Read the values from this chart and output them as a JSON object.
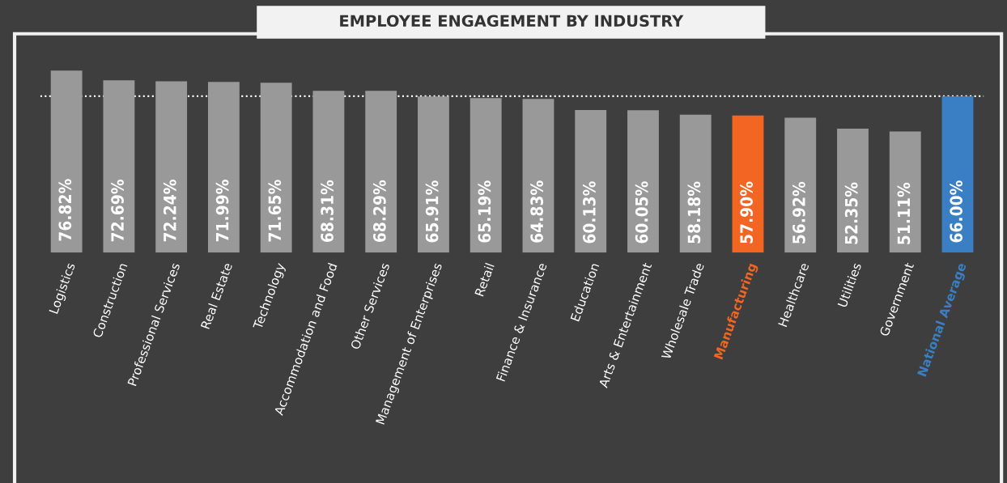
{
  "chart_data": {
    "type": "bar",
    "title": "EMPLOYEE ENGAGEMENT BY INDUSTRY",
    "categories": [
      "Logistics",
      "Construction",
      "Professional Services",
      "Real Estate",
      "Technology",
      "Accommodation and Food",
      "Other Services",
      "Management of Enterprises",
      "Retail",
      "Finance & Insurance",
      "Education",
      "Arts & Entertainment",
      "Wholesale Trade",
      "Manufacturing",
      "Healthcare",
      "Utilities",
      "Government",
      "National Average"
    ],
    "values": [
      76.82,
      72.69,
      72.24,
      71.99,
      71.65,
      68.31,
      68.29,
      65.91,
      65.19,
      64.83,
      60.13,
      60.05,
      58.18,
      57.9,
      56.92,
      52.35,
      51.11,
      66.0
    ],
    "value_labels": [
      "76.82%",
      "72.69%",
      "72.24%",
      "71.99%",
      "71.65%",
      "68.31%",
      "68.29%",
      "65.91%",
      "65.19%",
      "64.83%",
      "60.13%",
      "60.05%",
      "58.18%",
      "57.90%",
      "56.92%",
      "52.35%",
      "51.11%",
      "66.00%"
    ],
    "colors": [
      "#999999",
      "#999999",
      "#999999",
      "#999999",
      "#999999",
      "#999999",
      "#999999",
      "#999999",
      "#999999",
      "#999999",
      "#999999",
      "#999999",
      "#999999",
      "#f26522",
      "#999999",
      "#999999",
      "#999999",
      "#3a7fc4"
    ],
    "ref_lines": [
      {
        "axis": "y",
        "value": 66.0,
        "color": "#ffffff",
        "line_style": "dotted"
      }
    ],
    "grid": false,
    "legend": false
  }
}
